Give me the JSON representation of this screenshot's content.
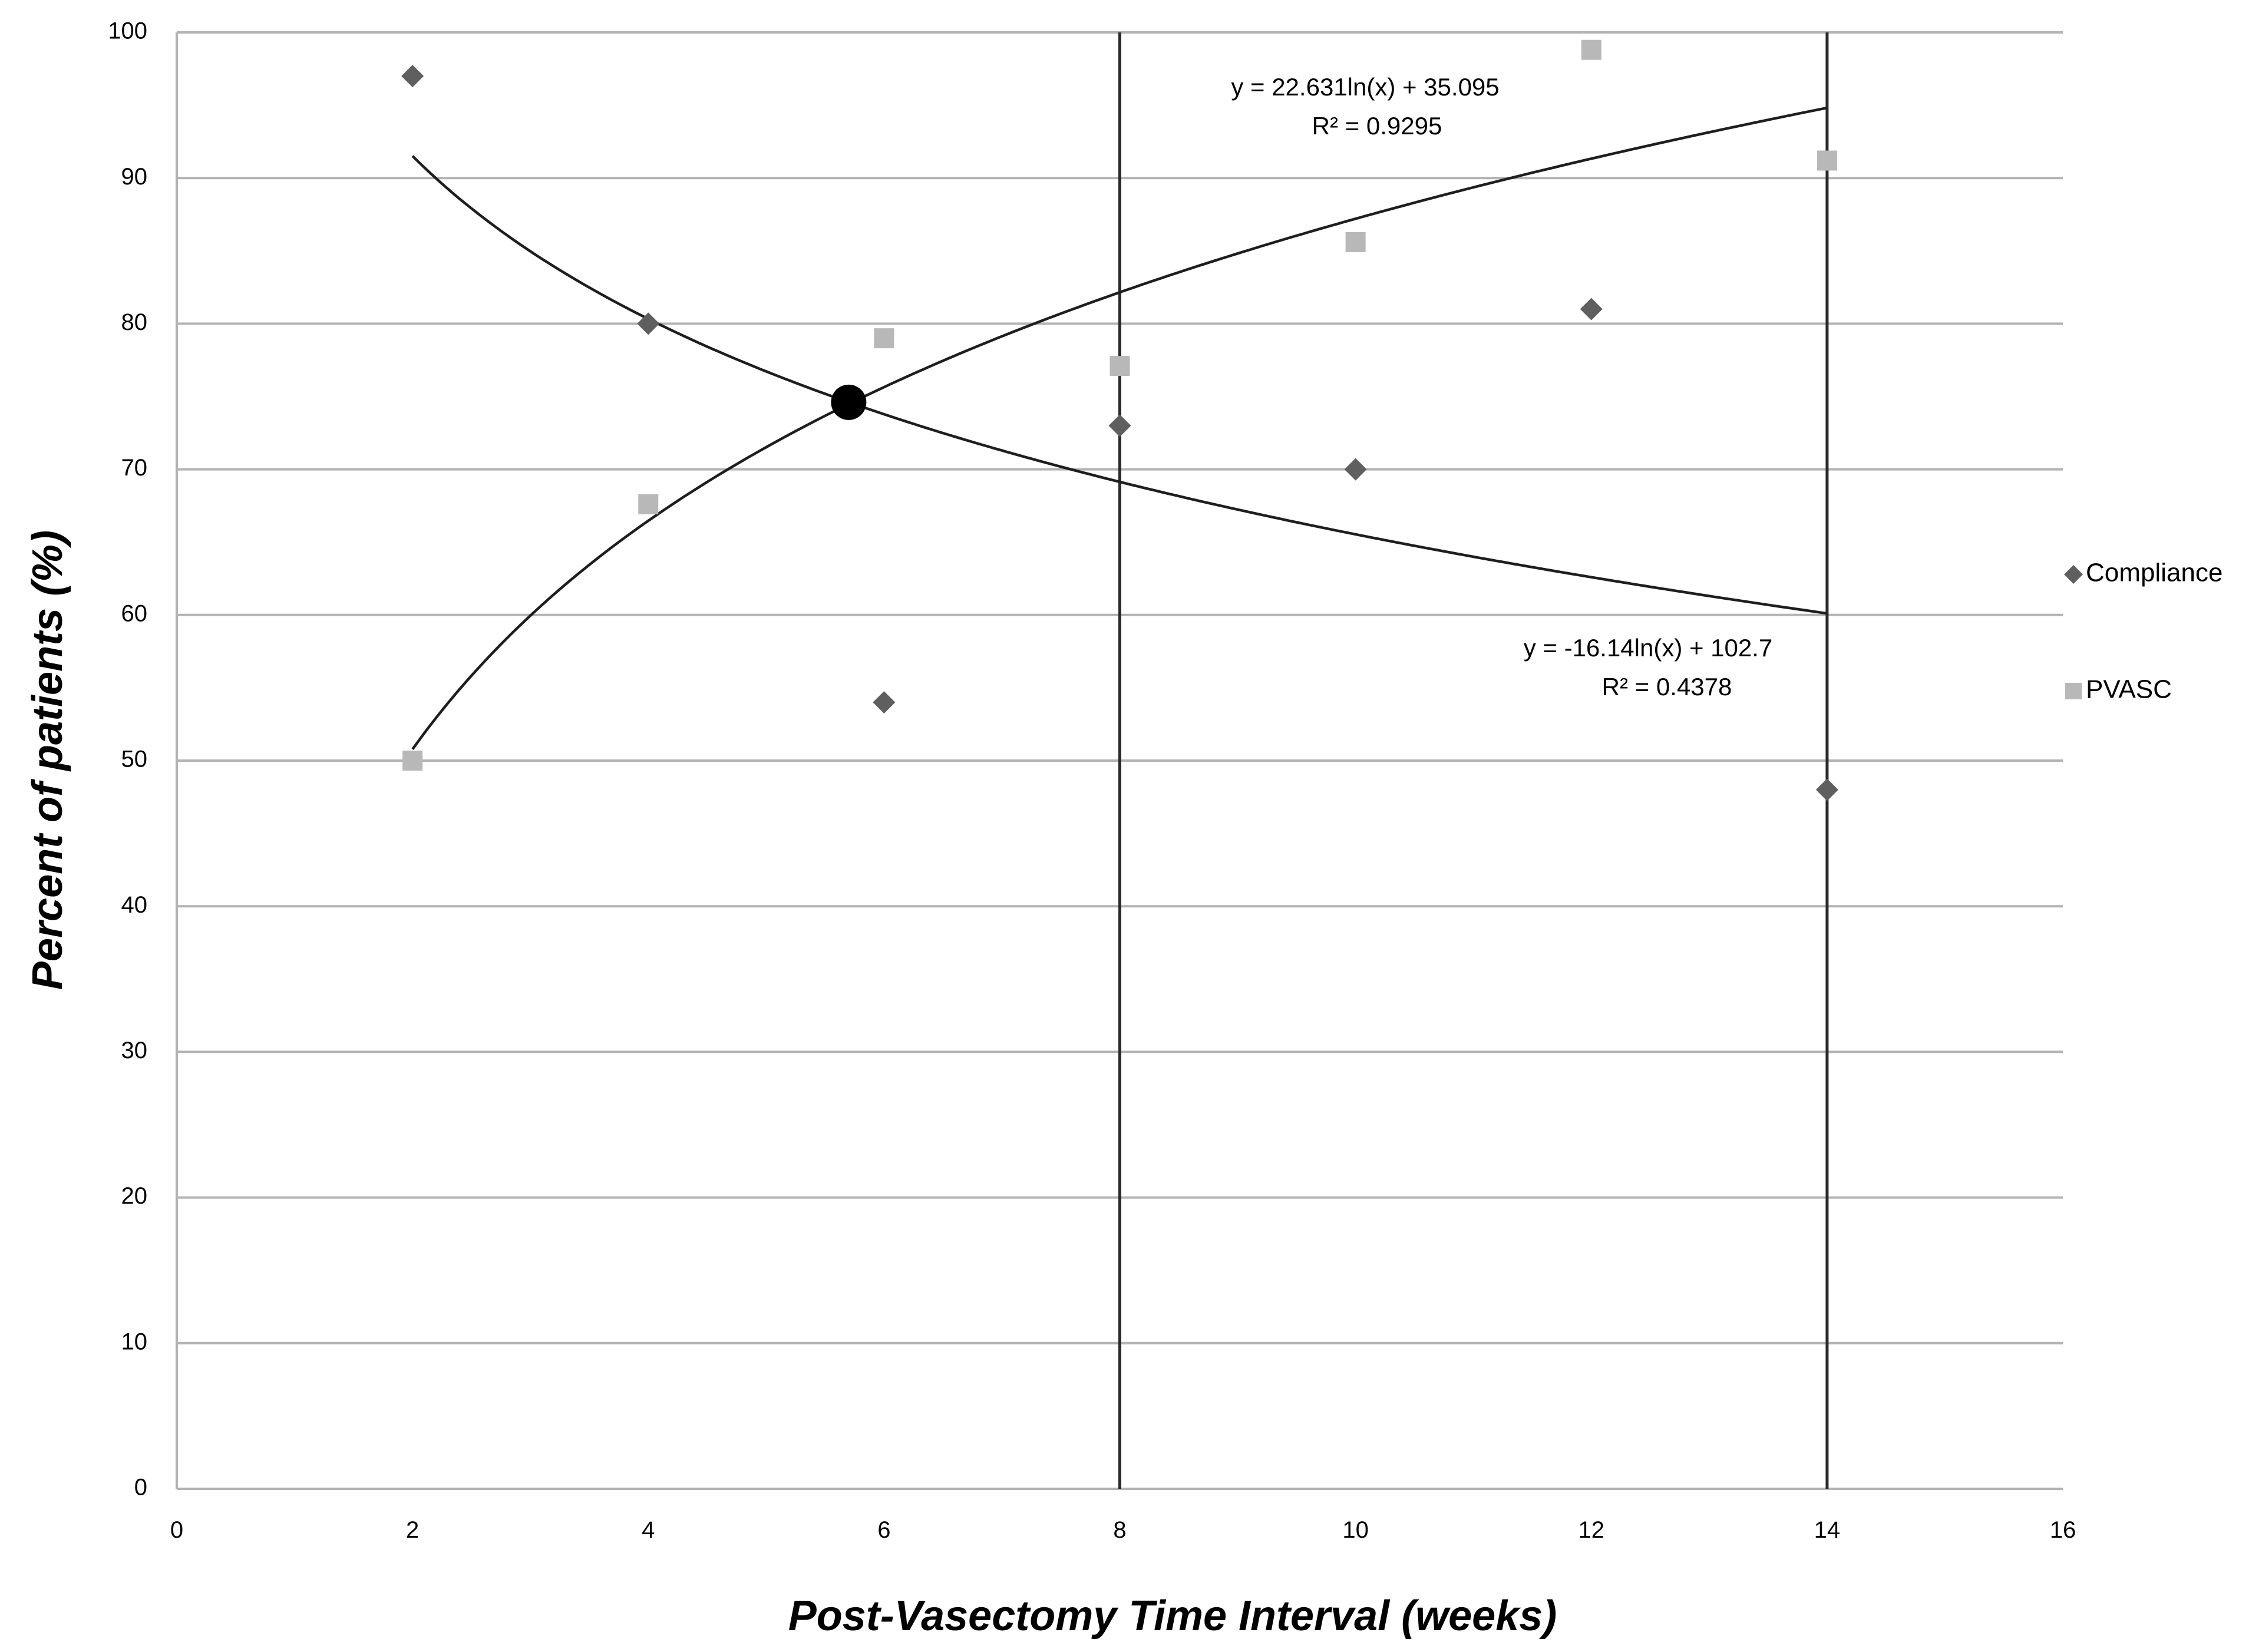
{
  "chart_data": {
    "type": "scatter",
    "title": "",
    "xlabel": "Post-Vasectomy Time Interval (weeks)",
    "ylabel": "Percent of patients (%)",
    "xlim": [
      0,
      16
    ],
    "ylim": [
      0,
      100
    ],
    "x_ticks": [
      "0",
      "2",
      "4",
      "6",
      "8",
      "10",
      "12",
      "14",
      "16"
    ],
    "y_ticks": [
      "0",
      "10",
      "20",
      "30",
      "40",
      "50",
      "60",
      "70",
      "80",
      "90",
      "100"
    ],
    "grid": "horizontal",
    "legend_position": "right",
    "series": [
      {
        "name": "Compliance",
        "marker": "diamond",
        "color": "#5f5f5f",
        "x": [
          2,
          4,
          6,
          8,
          10,
          12,
          14
        ],
        "y": [
          97,
          80,
          54,
          73,
          70,
          81,
          48
        ],
        "trendline": {
          "type": "logarithmic",
          "a": -16.14,
          "b": 102.7,
          "x_range": [
            2,
            14
          ],
          "equation": "y = -16.14ln(x) + 102.7",
          "r_squared": "R² = 0.4378"
        }
      },
      {
        "name": "PVASC",
        "marker": "square",
        "color": "#b8b8b8",
        "x": [
          2,
          4,
          6,
          8,
          10,
          12,
          14
        ],
        "y": [
          50,
          67.6,
          79,
          77.1,
          85.6,
          98.8,
          91.2
        ],
        "trendline": {
          "type": "logarithmic",
          "a": 22.631,
          "b": 35.095,
          "x_range": [
            2,
            14
          ],
          "equation": "y = 22.631ln(x) + 35.095",
          "r_squared": "R² = 0.9295"
        }
      }
    ],
    "vertical_lines_x": [
      8,
      14
    ],
    "intersection_point": {
      "x": 5.7,
      "y": 74.6
    }
  }
}
